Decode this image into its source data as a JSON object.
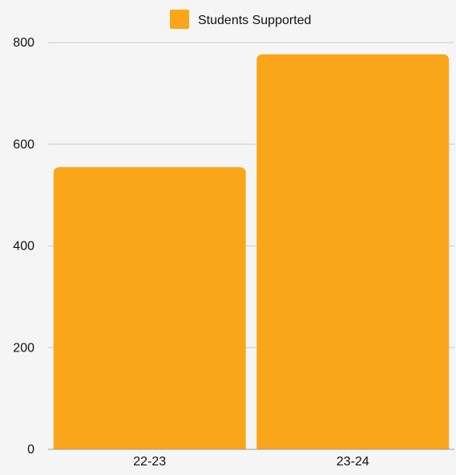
{
  "chart_data": {
    "type": "bar",
    "categories": [
      "22-23",
      "23-24"
    ],
    "series": [
      {
        "name": "Students Supported",
        "values": [
          555,
          777
        ]
      }
    ],
    "ylim": [
      0,
      800
    ],
    "yticks": [
      "0",
      "200",
      "400",
      "600",
      "800"
    ],
    "grid": true,
    "legend_position": "top-center",
    "colors": {
      "bar": "#faa61a",
      "grid": "#cccccc",
      "axis": "#999999",
      "text": "#111111"
    }
  }
}
